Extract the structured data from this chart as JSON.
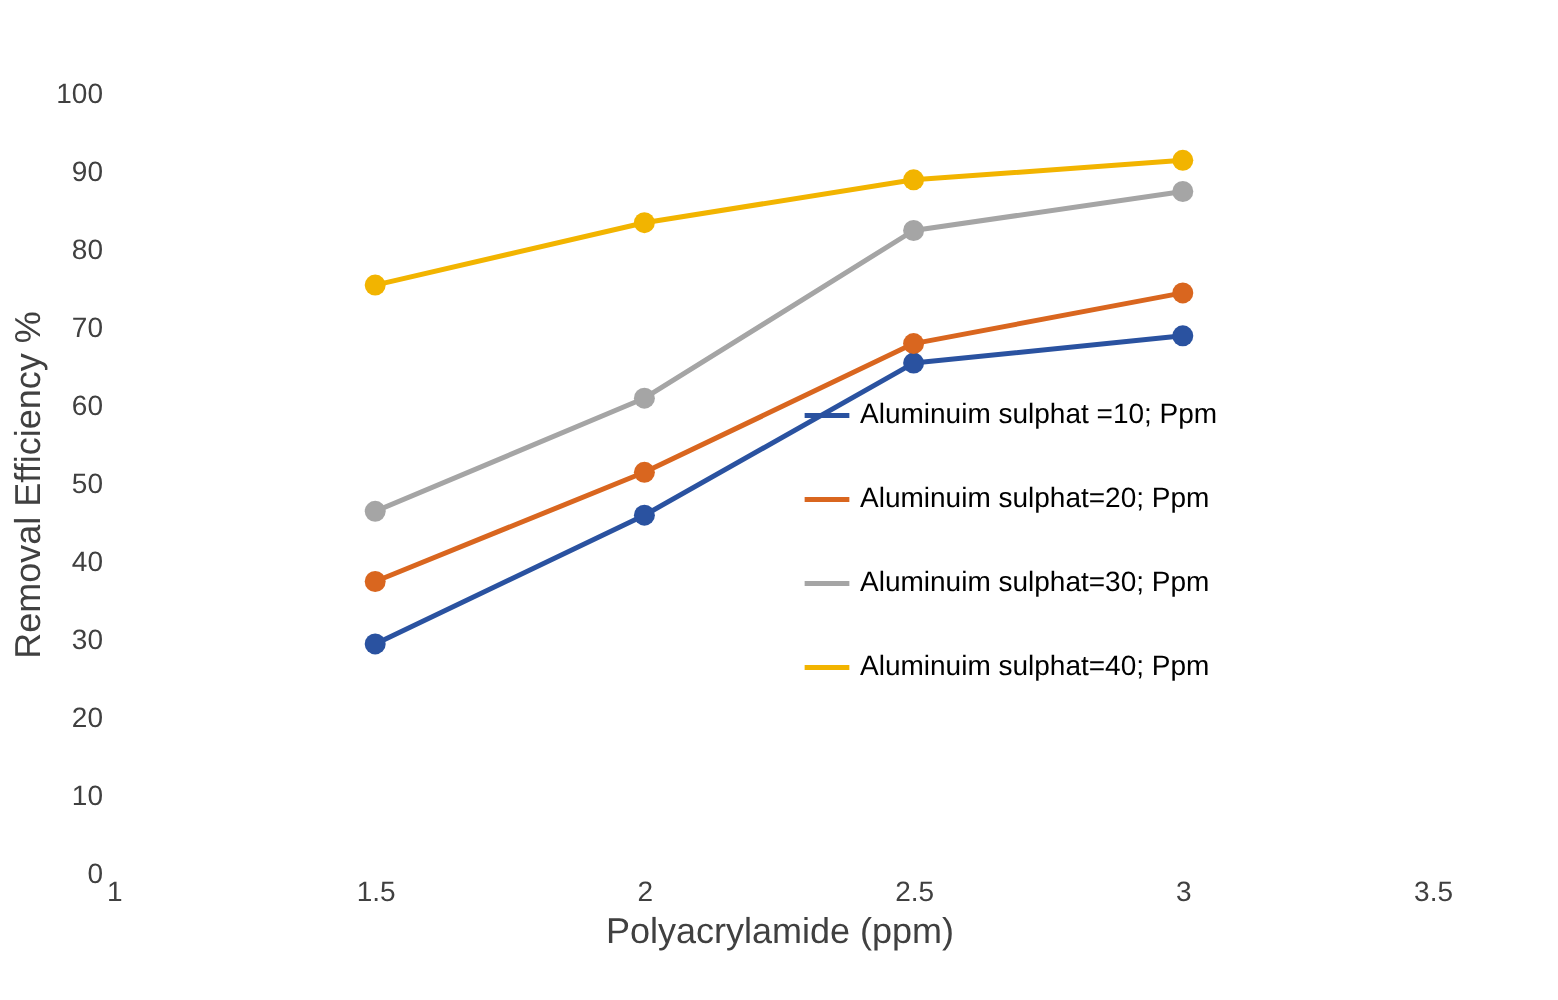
{
  "chart_data": {
    "type": "line",
    "xlabel": "Polyacrylamide (ppm)",
    "ylabel": "Removal Efficiency %",
    "x": [
      1.5,
      2,
      2.5,
      3
    ],
    "xlim": [
      1,
      3.5
    ],
    "xticks": [
      1,
      1.5,
      2,
      2.5,
      3,
      3.5
    ],
    "ylim": [
      0,
      100
    ],
    "yticks": [
      0,
      10,
      20,
      30,
      40,
      50,
      60,
      70,
      80,
      90,
      100
    ],
    "grid": false,
    "legend": "right",
    "marker": "circle",
    "line_style": "solid",
    "series": [
      {
        "name": "Aluminuim sulphat =10; Ppm",
        "color": "#2a52a0",
        "values": [
          29.5,
          46,
          65.5,
          69
        ]
      },
      {
        "name": "Aluminuim sulphat=20; Ppm",
        "color": "#d9661f",
        "values": [
          37.5,
          51.5,
          68,
          74.5
        ]
      },
      {
        "name": "Aluminuim sulphat=30; Ppm",
        "color": "#a5a5a5",
        "values": [
          46.5,
          61,
          82.5,
          87.5
        ]
      },
      {
        "name": "Aluminuim sulphat=40; Ppm",
        "color": "#f2b400",
        "values": [
          75.5,
          83.5,
          89,
          91.5
        ]
      }
    ]
  }
}
